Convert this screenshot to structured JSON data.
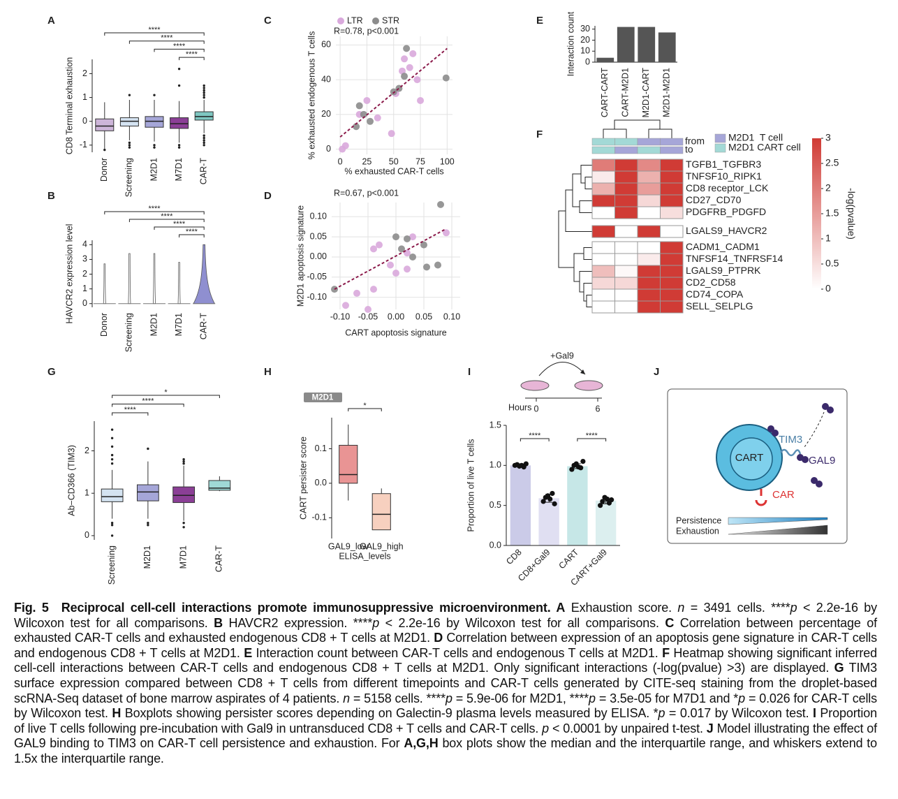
{
  "chart_data": [
    {
      "type": "box",
      "panel": "A",
      "ylabel": "CD8 Terminal exhaustion",
      "categories": [
        "Donor",
        "Screening",
        "M2D1",
        "M7D1",
        "CAR-T"
      ],
      "colors": [
        "#cdb5d9",
        "#d4e3f1",
        "#a5a6d8",
        "#8b3f96",
        "#7ec7c1"
      ],
      "whisker_low": [
        -1.15,
        -0.8,
        -0.85,
        -0.9,
        -0.5
      ],
      "q1": [
        -0.4,
        -0.2,
        -0.25,
        -0.3,
        0.05
      ],
      "median": [
        -0.2,
        0,
        0,
        -0.1,
        0.2
      ],
      "q3": [
        0.1,
        0.15,
        0.2,
        0.15,
        0.4
      ],
      "whisker_high": [
        0.8,
        0.9,
        0.9,
        0.85,
        0.9
      ],
      "outliers": [
        [
          -1.2
        ],
        [
          1.1,
          -0.9,
          -1.0,
          -1.1
        ],
        [
          1.1,
          -1.0,
          -1.1
        ],
        [
          2.2,
          1.5,
          -1.0,
          -1.1
        ],
        [
          1.0,
          1.1,
          1.2,
          1.3,
          1.4,
          1.5,
          -0.6,
          -0.7,
          -0.8,
          -0.9,
          -1.0
        ]
      ],
      "ylim": [
        -1.3,
        2.6
      ],
      "yticks": [
        -1,
        0,
        1,
        2
      ],
      "comparisons": [
        {
          "pair": [
            0,
            4
          ],
          "label": "****"
        },
        {
          "pair": [
            1,
            4
          ],
          "label": "****"
        },
        {
          "pair": [
            2,
            4
          ],
          "label": "****"
        },
        {
          "pair": [
            3,
            4
          ],
          "label": "****"
        }
      ]
    },
    {
      "type": "violin",
      "panel": "B",
      "ylabel": "HAVCR2 expression level",
      "categories": [
        "Donor",
        "Screening",
        "M2D1",
        "M7D1",
        "CAR-T"
      ],
      "colors": [
        "#ffffff",
        "#ffffff",
        "#ffffff",
        "#ffffff",
        "#8f8fd0"
      ],
      "max": [
        2.7,
        3.4,
        3.4,
        2.8,
        4.0
      ],
      "widths": [
        0.05,
        0.05,
        0.05,
        0.05,
        0.9
      ],
      "ylim": [
        -0.25,
        4.3
      ],
      "yticks": [
        0,
        1,
        2,
        3,
        4
      ],
      "comparisons": [
        {
          "pair": [
            0,
            4
          ],
          "label": "****"
        },
        {
          "pair": [
            1,
            4
          ],
          "label": "****"
        },
        {
          "pair": [
            2,
            4
          ],
          "label": "****"
        },
        {
          "pair": [
            3,
            4
          ],
          "label": "****"
        }
      ]
    },
    {
      "type": "scatter",
      "panel": "C",
      "xlabel": "% exhausted CAR-T cells",
      "ylabel": "% exhausted endogenous T cells",
      "annotation": "R=0.78, p<0.001",
      "legend": true,
      "grid": true,
      "series": [
        {
          "name": "LTR",
          "color": "#d9a9dc",
          "x": [
            2,
            5,
            18,
            25,
            35,
            48,
            52,
            58,
            60,
            65,
            68,
            72,
            75
          ],
          "y": [
            0,
            2,
            20,
            28,
            18,
            9,
            32,
            45,
            52,
            47,
            55,
            40,
            28
          ]
        },
        {
          "name": "STR",
          "color": "#8c8c8c",
          "x": [
            15,
            18,
            22,
            28,
            50,
            55,
            60,
            62,
            99
          ],
          "y": [
            13,
            25,
            20,
            16,
            33,
            35,
            42,
            58,
            41
          ]
        }
      ],
      "trendline": {
        "color": "#8b1a4a",
        "x": [
          0,
          100
        ],
        "y": [
          7,
          58
        ]
      },
      "xlim": [
        -4,
        105
      ],
      "ylim": [
        -3,
        65
      ],
      "xticks": [
        0,
        25,
        50,
        75,
        100
      ],
      "yticks": [
        0,
        20,
        40,
        60
      ]
    },
    {
      "type": "scatter",
      "panel": "D",
      "xlabel": "CART apoptosis signature",
      "ylabel": "M2D1 apoptosis signature",
      "annotation": "R=0.67, p<0.001",
      "legend": false,
      "grid": true,
      "series": [
        {
          "color": "#d9a9dc",
          "x": [
            -0.09,
            -0.07,
            -0.05,
            -0.04,
            -0.04,
            -0.03,
            -0.01,
            0.0,
            0.02,
            0.02,
            0.03,
            0.09
          ],
          "y": [
            -0.12,
            -0.09,
            -0.13,
            -0.08,
            0.02,
            0.03,
            -0.02,
            -0.04,
            -0.03,
            0.01,
            0.05,
            0.06
          ]
        },
        {
          "color": "#8c8c8c",
          "x": [
            -0.11,
            0.0,
            0.01,
            0.02,
            0.03,
            0.05,
            0.055,
            0.075,
            0.08
          ],
          "y": [
            -0.08,
            0.05,
            0.02,
            0.045,
            0.0,
            0.03,
            -0.025,
            -0.02,
            0.13
          ]
        }
      ],
      "trendline": {
        "color": "#8b1a4a",
        "x": [
          -0.11,
          0.09
        ],
        "y": [
          -0.08,
          0.07
        ]
      },
      "xlim": [
        -0.115,
        0.115
      ],
      "ylim": [
        -0.13,
        0.135
      ],
      "xticks": [
        {
          "value": -0.1,
          "label": "-0.10"
        },
        -0.05,
        {
          "value": 0,
          "label": "0.00"
        },
        0.05,
        {
          "value": 0.1,
          "label": "0.10"
        }
      ],
      "yticks": [
        {
          "value": -0.1,
          "label": "-0.10"
        },
        -0.05,
        {
          "value": 0,
          "label": "0.00"
        },
        0.05,
        {
          "value": 0.1,
          "label": "0.10"
        }
      ]
    },
    {
      "type": "bar",
      "panel": "E",
      "ylabel": "Interaction count",
      "categories": [
        "CART-CART",
        "CART-M2D1",
        "M2D1-CART",
        "M2D1-M2D1"
      ],
      "values": [
        4,
        32,
        32,
        27
      ],
      "color": "#555555",
      "ylim": [
        0,
        33
      ],
      "yticks": [
        0,
        10,
        20,
        30
      ]
    },
    {
      "type": "heatmap",
      "panel": "F",
      "rows": [
        "TGFB1_TGFBR3",
        "TNFSF10_RIPK1",
        "CD8 receptor_LCK",
        "CD27_CD70",
        "PDGFRB_PDGFD",
        "LGALS9_HAVCR2",
        "CADM1_CADM1",
        "TNFSF14_TNFRSF14",
        "LGALS9_PTPRK",
        "CD2_CD58",
        "CD74_COPA",
        "SELL_SELPLG"
      ],
      "values": [
        [
          2.0,
          3,
          1.8,
          3
        ],
        [
          0.3,
          3,
          1.2,
          3
        ],
        [
          1.2,
          3,
          1.5,
          3
        ],
        [
          3,
          3,
          0.6,
          3
        ],
        [
          0,
          3,
          0,
          0.5
        ],
        [
          3,
          0,
          3,
          0
        ],
        [
          0,
          0,
          0,
          3
        ],
        [
          0,
          0,
          0.3,
          3
        ],
        [
          1.0,
          0.1,
          3,
          3
        ],
        [
          0.6,
          0.6,
          3,
          3
        ],
        [
          0,
          0,
          3,
          3
        ],
        [
          0,
          0,
          3,
          3
        ]
      ],
      "annotation_rows": [
        "from",
        "to"
      ],
      "from_colors": [
        "#a3d9d6",
        "#a3d9d6",
        "#a6a6d8",
        "#a6a6d8"
      ],
      "to_colors": [
        "#a3d9d6",
        "#a6a6d8",
        "#a3d9d6",
        "#a6a6d8"
      ],
      "legend": [
        {
          "name": "M2D1  T cell",
          "color": "#a6a6d8"
        },
        {
          "name": "M2D1 CART cell",
          "color": "#a3d9d6"
        }
      ],
      "clim": [
        0,
        3
      ],
      "cmap": [
        "#ffffff",
        "#d03b35"
      ],
      "colorbar_ticks": [
        0,
        0.5,
        1,
        1.5,
        2,
        2.5,
        3
      ],
      "colorbar_label": "-log(pvalue)"
    },
    {
      "type": "box",
      "panel": "G",
      "ylabel": "Ab−CD366 (TIM3)",
      "categories": [
        "Screening",
        "M2D1",
        "M7D1",
        "CAR-T"
      ],
      "colors": [
        "#d4e3f1",
        "#a5a6d8",
        "#8b3f96",
        "#9fd9d6"
      ],
      "whisker_low": [
        0.4,
        0.4,
        0.35,
        1.05
      ],
      "q1": [
        0.8,
        0.82,
        0.78,
        1.07
      ],
      "median": [
        0.92,
        1.03,
        0.95,
        1.12
      ],
      "q3": [
        1.1,
        1.2,
        1.15,
        1.3
      ],
      "whisker_high": [
        1.55,
        1.75,
        1.65,
        1.4
      ],
      "outliers": [
        [
          2.5,
          2.3,
          2.1,
          1.9,
          1.8,
          1.7,
          0.3,
          0.25,
          0
        ],
        [
          2.05,
          0.3,
          0.25
        ],
        [
          1.8,
          1.75,
          1.7,
          0.3,
          0.2
        ],
        []
      ],
      "ylim": [
        -0.1,
        2.7
      ],
      "yticks": [
        0,
        1,
        2
      ],
      "comparisons": [
        {
          "pair": [
            0,
            3
          ],
          "label": "*"
        },
        {
          "pair": [
            0,
            2
          ],
          "label": "****"
        },
        {
          "pair": [
            0,
            1
          ],
          "label": "****"
        }
      ]
    },
    {
      "type": "box",
      "panel": "H",
      "tag": "M2D1",
      "ylabel": "CART persister score",
      "xlabel": "ELISA_levels",
      "categories": [
        "GAL9_low",
        "GAL9_high"
      ],
      "colors": [
        "#e99494",
        "#f7d0bf"
      ],
      "whisker_low": [
        -0.05,
        -0.135
      ],
      "q1": [
        0.0,
        -0.135
      ],
      "median": [
        0.025,
        -0.09
      ],
      "q3": [
        0.11,
        -0.03
      ],
      "whisker_high": [
        0.17,
        -0.015
      ],
      "outliers": [
        [],
        []
      ],
      "ylim": [
        -0.16,
        0.19
      ],
      "yticks": [
        0.1,
        {
          "value": 0,
          "label": "0.0"
        },
        -0.1
      ],
      "comparisons": [
        {
          "pair": [
            0,
            1
          ],
          "label": "*"
        }
      ]
    },
    {
      "type": "bar_dots",
      "panel": "I",
      "ylabel": "Proportion of live T cells",
      "categories": [
        "CD8",
        "CD8+Gal9",
        "CART",
        "CART+Gal9"
      ],
      "values": [
        1.0,
        0.59,
        0.99,
        0.56
      ],
      "errors": [
        0.02,
        0.05,
        0.03,
        0.04
      ],
      "points": [
        [
          1.0,
          1.01,
          0.99,
          1.0,
          0.98,
          1.02
        ],
        [
          0.55,
          0.6,
          0.62,
          0.58,
          0.65,
          0.52
        ],
        [
          0.95,
          1.0,
          1.02,
          0.98,
          0.97,
          1.05
        ],
        [
          0.5,
          0.55,
          0.6,
          0.58,
          0.53,
          0.57
        ]
      ],
      "colors": [
        "#cbcbe8",
        "#e0dff2",
        "#c6e7e7",
        "#dcefef"
      ],
      "ylim": [
        0,
        1.5
      ],
      "yticks": [
        {
          "value": 0,
          "label": "0.0"
        },
        0.5,
        {
          "value": 1,
          "label": "1.0"
        },
        1.5
      ],
      "comparisons": [
        {
          "pair": [
            0,
            1
          ],
          "label": "****"
        },
        {
          "pair": [
            2,
            3
          ],
          "label": "****"
        }
      ],
      "schematic": {
        "treatment": "+Gal9",
        "time_label": "Hours",
        "times": [
          0,
          6
        ]
      }
    }
  ],
  "model": {
    "panel": "J",
    "cell": "CART",
    "receptor": "TIM3",
    "ligand": "GAL9",
    "car": "CAR",
    "persistence": "Persistence",
    "exhaustion": "Exhaustion"
  },
  "caption": [
    "Fig. 5",
    "Reciprocal cell-cell interactions promote immunosuppressive microenvironment. A",
    " Exhaustion score. ",
    "n",
    " = 3491 cells. ****",
    "p",
    " < 2.2e-16 by Wilcoxon test for all comparisons. ",
    "B",
    " HAVCR2 expression. ****",
    "p",
    " < 2.2e-16 by Wilcoxon test for all comparisons. ",
    "C",
    " Correlation between percentage of exhausted CAR-T cells and exhausted endogenous CD8 + T cells at M2D1. ",
    "D",
    " Correlation between expression of an apoptosis gene signature in CAR-T cells and endogenous CD8 + T cells at M2D1. ",
    "E",
    " Interaction count between CAR-T cells and endogenous T cells at M2D1. ",
    "F",
    " Heatmap showing significant inferred cell-cell interactions between CAR-T cells and endogenous CD8 + T cells at M2D1. Only significant interactions (-log(pvalue) >3) are displayed. ",
    "G",
    " TIM3 surface expression compared between CD8 + T cells from different timepoints and CAR-T cells generated by CITE-seq staining from the droplet-based scRNA-Seq dataset of bone marrow aspirates of 4 patients. ",
    "n",
    " = 5158 cells. ****",
    "p",
    " = 5.9e-06 for M2D1, ****",
    "p",
    " = 3.5e-05 for M7D1 and *",
    "p",
    " = 0.026 for CAR-T cells by Wilcoxon test. ",
    "H",
    " Boxplots showing persister scores depending on Galectin-9 plasma levels measured by ELISA. *",
    "p",
    " = 0.017 by Wilcoxon test. ",
    "I",
    " Proportion of live T cells following pre-incubation with Gal9 in untransduced CD8 + T cells and CAR-T cells. ",
    "p",
    " < 0.0001 by unpaired t-test. ",
    "J",
    " Model illustrating the effect of GAL9 binding to TIM3 on CAR-T cell persistence and exhaustion. For ",
    "A,G,H",
    " box plots show the median and the interquartile range, and whiskers extend to 1.5x the interquartile range."
  ]
}
